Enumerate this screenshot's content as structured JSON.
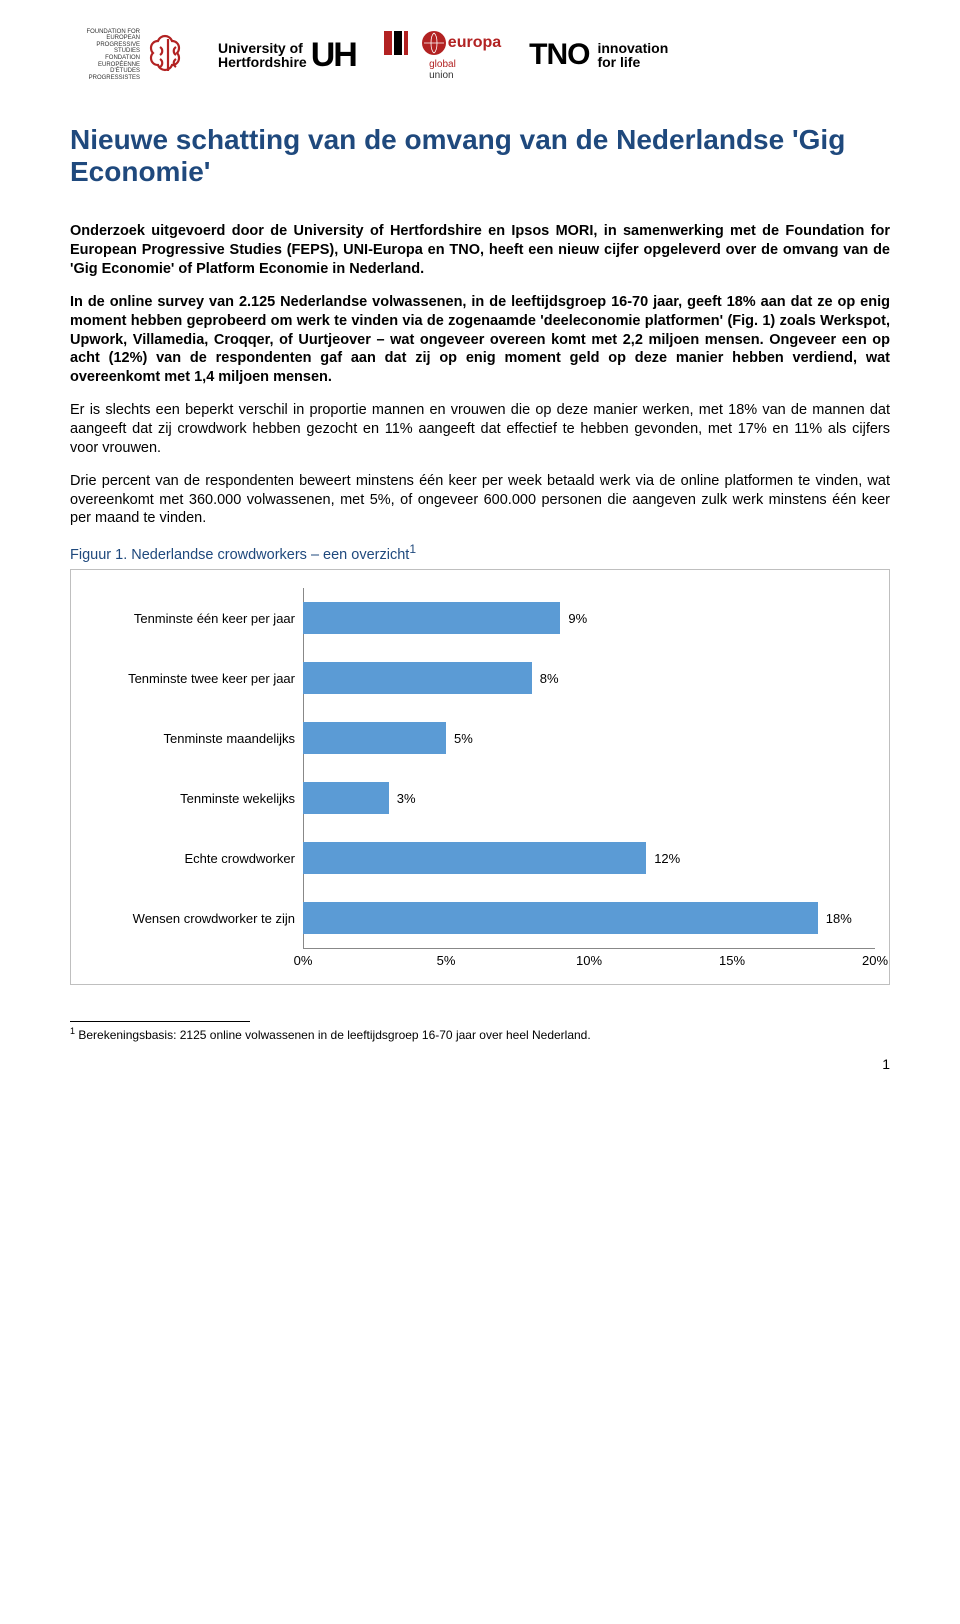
{
  "logos": {
    "feps_lines": "FOUNDATION FOR EUROPEAN\nPROGRESSIVE STUDIES\nFONDATION EUROPÉENNE\nD'ÉTUDES PROGRESSISTES",
    "uh_text": "University of\nHertfordshire",
    "uh_big": "UH",
    "uni_europa": "europa",
    "uni_global": "global",
    "uni_union": "union",
    "tno": "TNO",
    "tno_tag1": "innovation",
    "tno_tag2": "for life"
  },
  "colors": {
    "title": "#1f497d",
    "bar": "#5b9bd5",
    "chart_border": "#bfbfbf",
    "axis": "#888888",
    "feps_red": "#b22222"
  },
  "title": "Nieuwe schatting van de omvang van de Nederlandse 'Gig Economie'",
  "para1": "Onderzoek uitgevoerd door de University of Hertfordshire en Ipsos MORI, in samenwerking met de Foundation for European Progressive Studies (FEPS), UNI-Europa en TNO, heeft een nieuw cijfer opgeleverd over de omvang van de 'Gig Economie' of Platform Economie in Nederland.",
  "para2": "In de online survey van 2.125 Nederlandse volwassenen, in de leeftijdsgroep 16-70 jaar, geeft 18% aan dat ze op enig moment hebben geprobeerd om werk te vinden via de zogenaamde 'deeleconomie platformen' (Fig. 1) zoals Werkspot, Upwork, Villamedia, Croqqer, of Uurtjeover – wat ongeveer overeen komt met 2,2 miljoen mensen. Ongeveer een op acht (12%) van de respondenten gaf aan dat zij op enig moment geld op deze manier hebben verdiend, wat overeenkomt met 1,4 miljoen mensen.",
  "para3": "Er is slechts een beperkt verschil in proportie mannen en vrouwen die op deze manier werken, met 18% van de mannen dat aangeeft dat zij crowdwork hebben gezocht en 11% aangeeft dat effectief te hebben gevonden, met 17% en 11% als cijfers voor vrouwen.",
  "para4": "Drie percent van de respondenten beweert minstens één keer per week betaald werk via de online platformen te vinden, wat overeenkomt met 360.000 volwassenen, met 5%, of ongeveer 600.000 personen die aangeven zulk werk minstens één keer per maand te vinden.",
  "fig_caption": "Figuur 1. Nederlandse crowdworkers – een overzicht",
  "fig_sup": "1",
  "chart": {
    "type": "horizontal-bar",
    "xmax": 20,
    "xticks": [
      0,
      5,
      10,
      15,
      20
    ],
    "xtick_labels": [
      "0%",
      "5%",
      "10%",
      "15%",
      "20%"
    ],
    "bar_color": "#5b9bd5",
    "background_color": "#ffffff",
    "category_fontsize": 13,
    "value_fontsize": 13,
    "rows": [
      {
        "label": "Tenminste één keer per jaar",
        "value": 9,
        "display": "9%"
      },
      {
        "label": "Tenminste twee keer per jaar",
        "value": 8,
        "display": "8%"
      },
      {
        "label": "Tenminste maandelijks",
        "value": 5,
        "display": "5%"
      },
      {
        "label": "Tenminste wekelijks",
        "value": 3,
        "display": "3%"
      },
      {
        "label": "Echte crowdworker",
        "value": 12,
        "display": "12%"
      },
      {
        "label": "Wensen crowdworker te zijn",
        "value": 18,
        "display": "18%"
      }
    ]
  },
  "footnote": "Berekeningsbasis: 2125 online volwassenen in de leeftijdsgroep 16-70 jaar over heel Nederland.",
  "footnote_num": "1",
  "page_number": "1"
}
